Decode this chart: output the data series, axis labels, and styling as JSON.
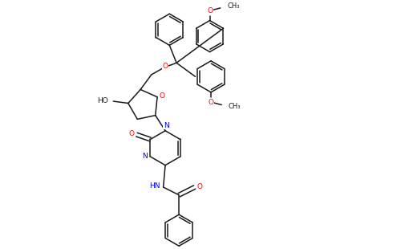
{
  "bg_color": "#ffffff",
  "bond_color": "#1a1a1a",
  "oxygen_color": "#ff0000",
  "nitrogen_color": "#0000ff",
  "font_size": 6.5,
  "line_width": 1.1,
  "fig_width": 5.0,
  "fig_height": 3.1,
  "dpi": 100,
  "xlim": [
    0,
    10
  ],
  "ylim": [
    0,
    6.2
  ]
}
